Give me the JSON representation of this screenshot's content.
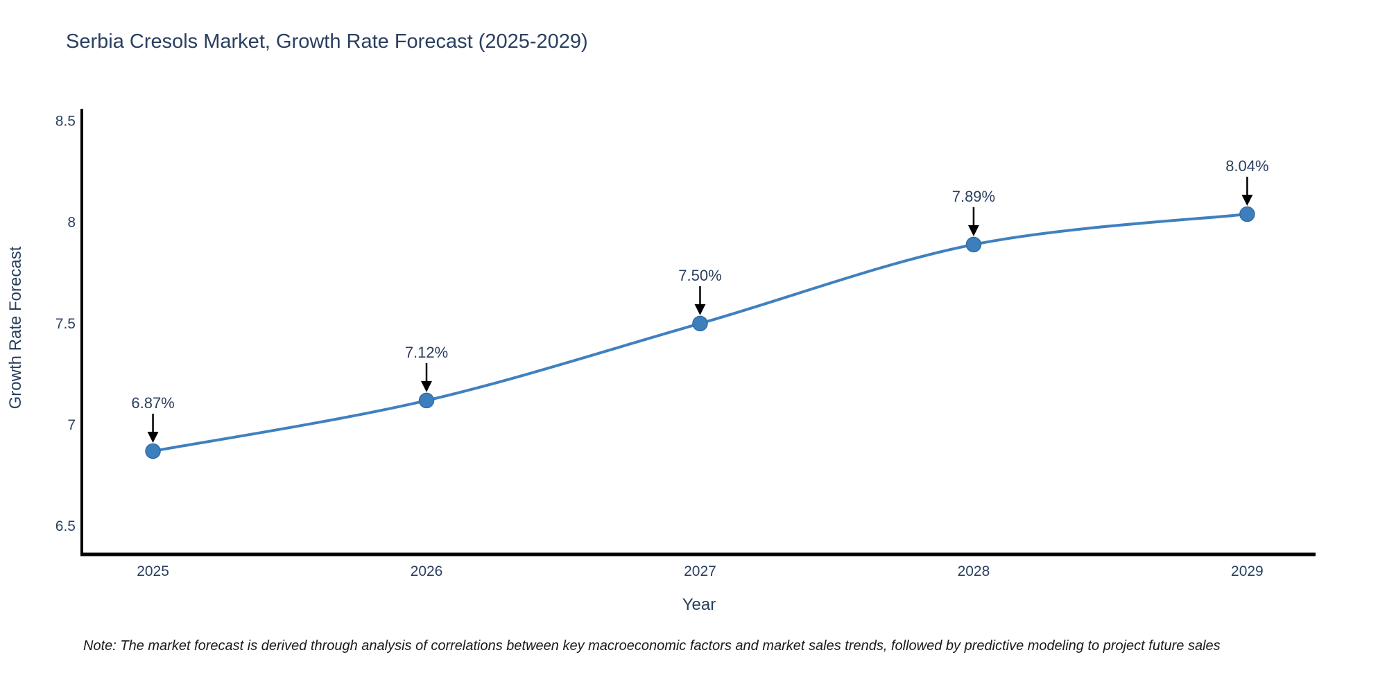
{
  "title": "Serbia Cresols Market, Growth Rate Forecast (2025-2029)",
  "note": "Note: The market forecast is derived through analysis of correlations between key macroeconomic factors and market sales trends, followed by predictive modeling to project future sales",
  "chart_data": {
    "type": "line",
    "title": "Serbia Cresols Market, Growth Rate Forecast (2025-2029)",
    "xlabel": "Year",
    "ylabel": "Growth Rate Forecast",
    "categories": [
      "2025",
      "2026",
      "2027",
      "2028",
      "2029"
    ],
    "x": [
      2025,
      2026,
      2027,
      2028,
      2029
    ],
    "series": [
      {
        "name": "Growth Rate Forecast",
        "values": [
          6.87,
          7.12,
          7.5,
          7.89,
          8.04
        ]
      }
    ],
    "point_labels": [
      "6.87%",
      "7.12%",
      "7.50%",
      "7.89%",
      "8.04%"
    ],
    "yticks": [
      6.5,
      7,
      7.5,
      8,
      8.5
    ],
    "ytick_labels": [
      "6.5",
      "7",
      "7.5",
      "8",
      "8.5"
    ],
    "xlim": [
      2024.74,
      2029.25
    ],
    "ylim": [
      6.36,
      8.55
    ],
    "grid": false,
    "legend": "none",
    "line_smoothing": "spline",
    "colors": {
      "line": "#4080bf",
      "marker_fill": "#3d7ebd",
      "marker_edge": "#2e6da4",
      "axis": "#000000",
      "text": "#2a3f5f",
      "annotation_arrow": "#000000",
      "background": "#ffffff"
    }
  }
}
